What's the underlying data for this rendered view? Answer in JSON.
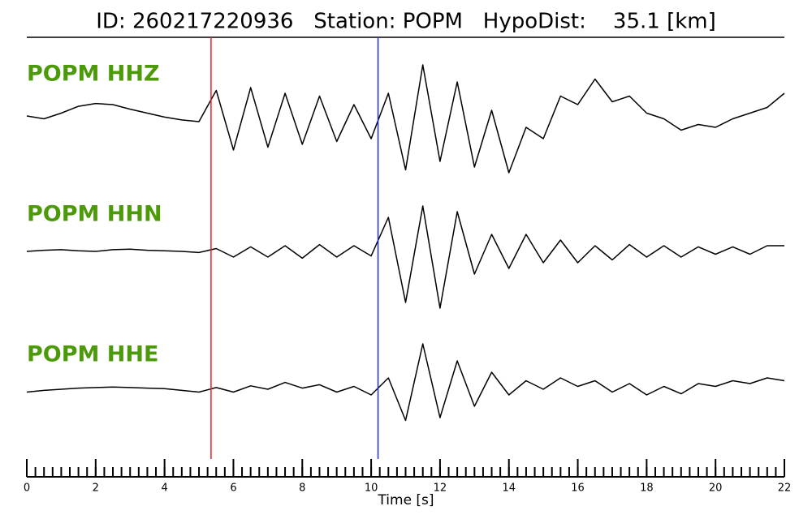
{
  "chart_data": {
    "type": "seismogram",
    "title": "ID: 260217220936   Station: POPM   HypoDist:    35.1 [km]",
    "xlabel": "Time [s]",
    "xlim": [
      0,
      22
    ],
    "xticks": [
      0,
      2,
      4,
      6,
      8,
      10,
      12,
      14,
      16,
      18,
      20,
      22
    ],
    "minor_tick_step": 0.25,
    "ylim": [
      -1,
      1
    ],
    "label_color": "#4c9a0a",
    "trace_color": "#000000",
    "x": [
      0,
      0.5,
      1,
      1.5,
      2,
      2.5,
      3,
      3.5,
      4,
      4.5,
      5,
      5.5,
      6,
      6.5,
      7,
      7.5,
      8,
      8.5,
      9,
      9.5,
      10,
      10.5,
      11,
      11.5,
      12,
      12.5,
      13,
      13.5,
      14,
      14.5,
      15,
      15.5,
      16,
      16.5,
      17,
      17.5,
      18,
      18.5,
      19,
      19.5,
      20,
      20.5,
      21,
      21.5,
      22
    ],
    "series": [
      {
        "name": "POPM HHZ",
        "values": [
          0.1,
          0.05,
          0.15,
          0.27,
          0.32,
          0.3,
          0.22,
          0.15,
          0.08,
          0.03,
          0,
          0.55,
          -0.5,
          0.6,
          -0.45,
          0.5,
          -0.4,
          0.45,
          -0.35,
          0.3,
          -0.3,
          0.5,
          -0.85,
          1.0,
          -0.7,
          0.7,
          -0.8,
          0.2,
          -0.9,
          -0.1,
          -0.3,
          0.45,
          0.3,
          0.75,
          0.35,
          0.45,
          0.15,
          0.05,
          -0.15,
          -0.05,
          -0.1,
          0.05,
          0.15,
          0.25,
          0.5
        ]
      },
      {
        "name": "POPM HHN",
        "values": [
          0,
          0.02,
          0.03,
          0.01,
          0,
          0.03,
          0.04,
          0.02,
          0.01,
          0,
          -0.02,
          0.05,
          -0.1,
          0.08,
          -0.1,
          0.1,
          -0.12,
          0.12,
          -0.1,
          0.1,
          -0.08,
          0.6,
          -0.9,
          0.8,
          -1.0,
          0.7,
          -0.4,
          0.3,
          -0.3,
          0.3,
          -0.2,
          0.2,
          -0.2,
          0.1,
          -0.15,
          0.12,
          -0.1,
          0.1,
          -0.1,
          0.08,
          -0.05,
          0.08,
          -0.05,
          0.1,
          0.1
        ]
      },
      {
        "name": "POPM HHE",
        "values": [
          -0.05,
          -0.02,
          0,
          0.02,
          0.03,
          0.04,
          0.03,
          0.02,
          0.01,
          -0.02,
          -0.05,
          0.03,
          -0.05,
          0.06,
          0,
          0.12,
          0.02,
          0.08,
          -0.05,
          0.05,
          -0.1,
          0.2,
          -0.55,
          0.8,
          -0.5,
          0.5,
          -0.3,
          0.3,
          -0.1,
          0.15,
          0,
          0.2,
          0.05,
          0.15,
          -0.05,
          0.1,
          -0.1,
          0.05,
          -0.08,
          0.1,
          0.05,
          0.15,
          0.1,
          0.2,
          0.15
        ]
      }
    ],
    "picks": [
      {
        "x": 5.35,
        "color": "#e8212a"
      },
      {
        "x": 10.2,
        "color": "#2030d0"
      }
    ]
  }
}
